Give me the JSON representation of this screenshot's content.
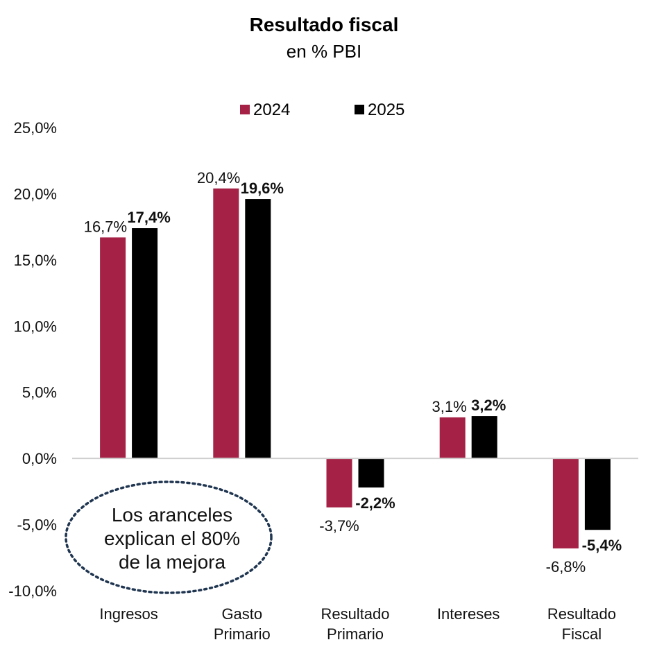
{
  "chart_data": {
    "type": "bar",
    "title": "Resultado fiscal",
    "subtitle": "en % PBI",
    "categories": [
      [
        "Ingresos"
      ],
      [
        "Gasto",
        "Primario"
      ],
      [
        "Resultado",
        "Primario"
      ],
      [
        "Intereses"
      ],
      [
        "Resultado",
        "Fiscal"
      ]
    ],
    "series": [
      {
        "name": "2024",
        "color": "#a52145",
        "values": [
          16.7,
          20.4,
          -3.7,
          3.1,
          -6.8
        ],
        "labels": [
          "16,7%",
          "20,4%",
          "-3,7%",
          "3,1%",
          "-6,8%"
        ]
      },
      {
        "name": "2025",
        "color": "#000000",
        "values": [
          17.4,
          19.6,
          -2.2,
          3.2,
          -5.4
        ],
        "labels": [
          "17,4%",
          "19,6%",
          "-2,2%",
          "3,2%",
          "-5,4%"
        ]
      }
    ],
    "ylim": [
      -10,
      25
    ],
    "yticks": [
      25,
      20,
      15,
      10,
      5,
      0,
      -5,
      -10
    ],
    "ytick_labels": [
      "25,0%",
      "20,0%",
      "15,0%",
      "10,0%",
      "5,0%",
      "0,0%",
      "-5,0%",
      "-10,0%"
    ],
    "legend_position": "top-center",
    "grid": false,
    "annotation": [
      "Los aranceles",
      "explican el 80%",
      "de la mejora"
    ]
  }
}
